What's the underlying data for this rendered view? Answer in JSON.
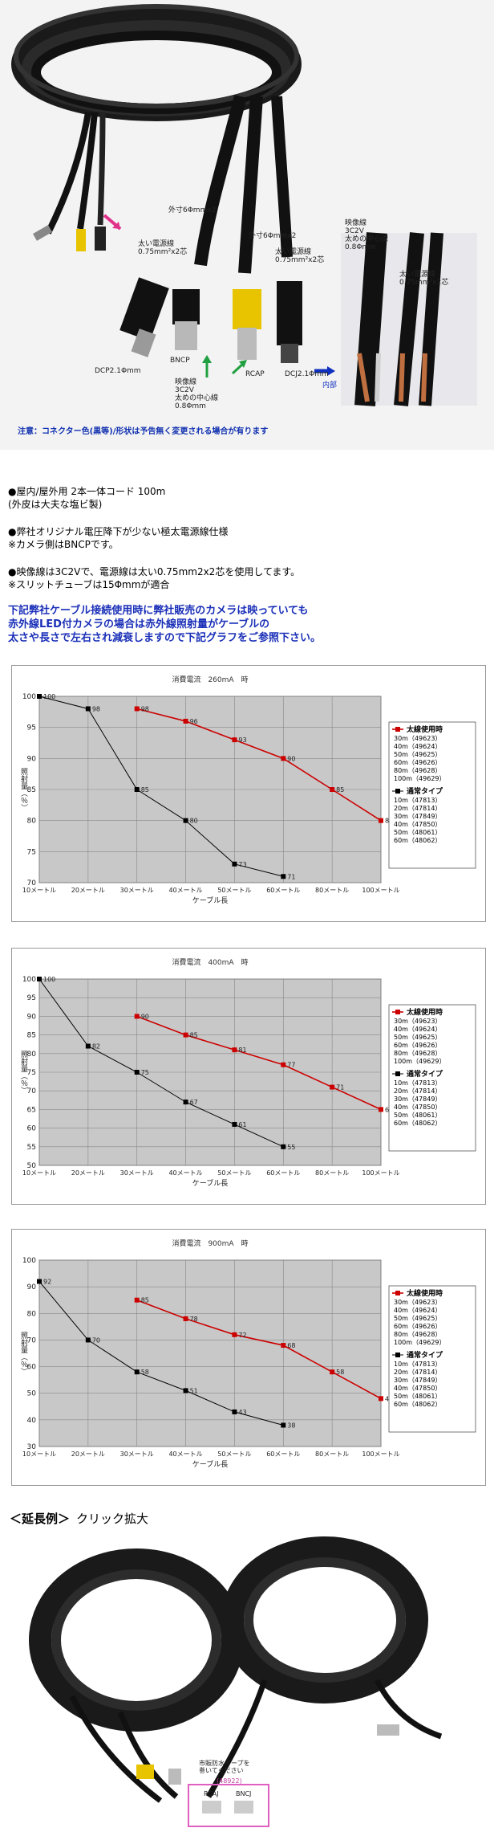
{
  "product_photo": {
    "labels": {
      "outer_diameter_1": "外寸6Φmmx2",
      "outer_diameter_2": "外寸6Φmmx2",
      "thick_power_1a": "太い電源線",
      "thick_power_1b": "0.75mm²x2芯",
      "thick_power_2a": "太い電源線",
      "thick_power_2b": "0.75mm²x2芯",
      "thick_power_3a": "太い電源線",
      "thick_power_3b": "0.75mm²x2芯",
      "video_line_a": "映像線",
      "video_line_b": "3C2V",
      "video_line_c": "太めの中心線",
      "video_line_d": "0.8Φmm",
      "video_line_2a": "映像線",
      "video_line_2b": "3C2V",
      "video_line_2c": "太めの中心線",
      "video_line_2d": "0.8Φmm",
      "dcp": "DCP2.1Φmm",
      "bncp": "BNCP",
      "rcap": "RCAP",
      "dcj": "DCJ2.1Φmm",
      "inner": "内部"
    },
    "note": "注意：コネクター色(黒等)/形状は予告無く変更される場合が有ります"
  },
  "description": {
    "lines": [
      "●屋内/屋外用 2本一体コード 100m",
      "(外皮は大夫な塩ビ製)",
      "●弊社オリジナル電圧降下が少ない極太電源線仕様",
      "※カメラ側はBNCPです。",
      "●映像線は3C2Vで、電源線は太い0.75mm2x2芯を使用してます。",
      "※スリットチューブは15Φmmが適合"
    ],
    "notice": [
      "下記弊社ケーブル接続使用時に弊社販売のカメラは映っていても",
      "赤外線LED付カメラの場合は赤外線照射量がケーブルの",
      "太さや長さで左右され減衰しますので下記グラフをご参照下さい。"
    ]
  },
  "chart_data": [
    {
      "type": "line",
      "title": "消費電流　260mA　時",
      "xlabel": "ケーブル長",
      "ylabel": "照射量（％）",
      "categories": [
        "10メートル",
        "20メートル",
        "30メートル",
        "40メートル",
        "50メートル",
        "60メートル",
        "80メートル",
        "100メートル"
      ],
      "ylim": [
        70,
        100
      ],
      "yticks": [
        70,
        75,
        80,
        85,
        90,
        95,
        100
      ],
      "grid": true,
      "legend_position": "right",
      "series": [
        {
          "name": "太線使用時",
          "color": "#cc0000",
          "values": [
            null,
            null,
            98,
            96,
            93,
            90,
            85,
            80
          ]
        },
        {
          "name": "通常タイプ",
          "color": "#000000",
          "values": [
            100,
            98,
            85,
            80,
            73,
            71,
            null,
            null
          ]
        }
      ],
      "legend": {
        "thick_title": "太線使用時",
        "thick_items": [
          "30m（49623）",
          "40m（49624）",
          "50m（49625）",
          "60m（49626）",
          "80m（49628）",
          "100m（49629）"
        ],
        "normal_title": "通常タイプ",
        "normal_items": [
          "10m（47813）",
          "20m（47814）",
          "30m（47849）",
          "40m（47850）",
          "50m（48061）",
          "60m（48062）"
        ]
      }
    },
    {
      "type": "line",
      "title": "消費電流　400mA　時",
      "xlabel": "ケーブル長",
      "ylabel": "照射量（％）",
      "categories": [
        "10メートル",
        "20メートル",
        "30メートル",
        "40メートル",
        "50メートル",
        "60メートル",
        "80メートル",
        "100メートル"
      ],
      "ylim": [
        50,
        100
      ],
      "yticks": [
        50,
        55,
        60,
        65,
        70,
        75,
        80,
        85,
        90,
        95,
        100
      ],
      "grid": true,
      "legend_position": "right",
      "series": [
        {
          "name": "太線使用時",
          "color": "#cc0000",
          "values": [
            null,
            null,
            90,
            85,
            81,
            77,
            71,
            65
          ]
        },
        {
          "name": "通常タイプ",
          "color": "#000000",
          "values": [
            100,
            82,
            75,
            67,
            61,
            55,
            null,
            null
          ]
        }
      ],
      "legend": {
        "thick_title": "太線使用時",
        "thick_items": [
          "30m（49623）",
          "40m（49624）",
          "50m（49625）",
          "60m（49626）",
          "80m（49628）",
          "100m（49629）"
        ],
        "normal_title": "通常タイプ",
        "normal_items": [
          "10m（47813）",
          "20m（47814）",
          "30m（47849）",
          "40m（47850）",
          "50m（48061）",
          "60m（48062）"
        ]
      }
    },
    {
      "type": "line",
      "title": "消費電流　900mA　時",
      "xlabel": "ケーブル長",
      "ylabel": "照射量（％）",
      "categories": [
        "10メートル",
        "20メートル",
        "30メートル",
        "40メートル",
        "50メートル",
        "60メートル",
        "80メートル",
        "100メートル"
      ],
      "ylim": [
        30,
        100
      ],
      "yticks": [
        30,
        40,
        50,
        60,
        70,
        80,
        90,
        100
      ],
      "grid": true,
      "legend_position": "right",
      "series": [
        {
          "name": "太線使用時",
          "color": "#cc0000",
          "values": [
            null,
            null,
            85,
            78,
            72,
            68,
            58,
            48
          ]
        },
        {
          "name": "通常タイプ",
          "color": "#000000",
          "values": [
            92,
            70,
            58,
            51,
            43,
            38,
            null,
            null
          ]
        }
      ],
      "legend": {
        "thick_title": "太線使用時",
        "thick_items": [
          "30m（49623）",
          "40m（49624）",
          "50m（49625）",
          "60m（49626）",
          "80m（49628）",
          "100m（49629）"
        ],
        "normal_title": "通常タイプ",
        "normal_items": [
          "10m（47813）",
          "20m（47814）",
          "30m（47849）",
          "40m（47850）",
          "50m（48061）",
          "60m（48062）"
        ]
      }
    }
  ],
  "example": {
    "title": "＜延長例＞",
    "click_label": "クリック拡大",
    "photo_labels": {
      "tape": "市販防水テープを",
      "tape2": "巻いてください",
      "code": "(48922)",
      "rcaj": "RCAJ",
      "bncj": "BNCJ"
    }
  }
}
